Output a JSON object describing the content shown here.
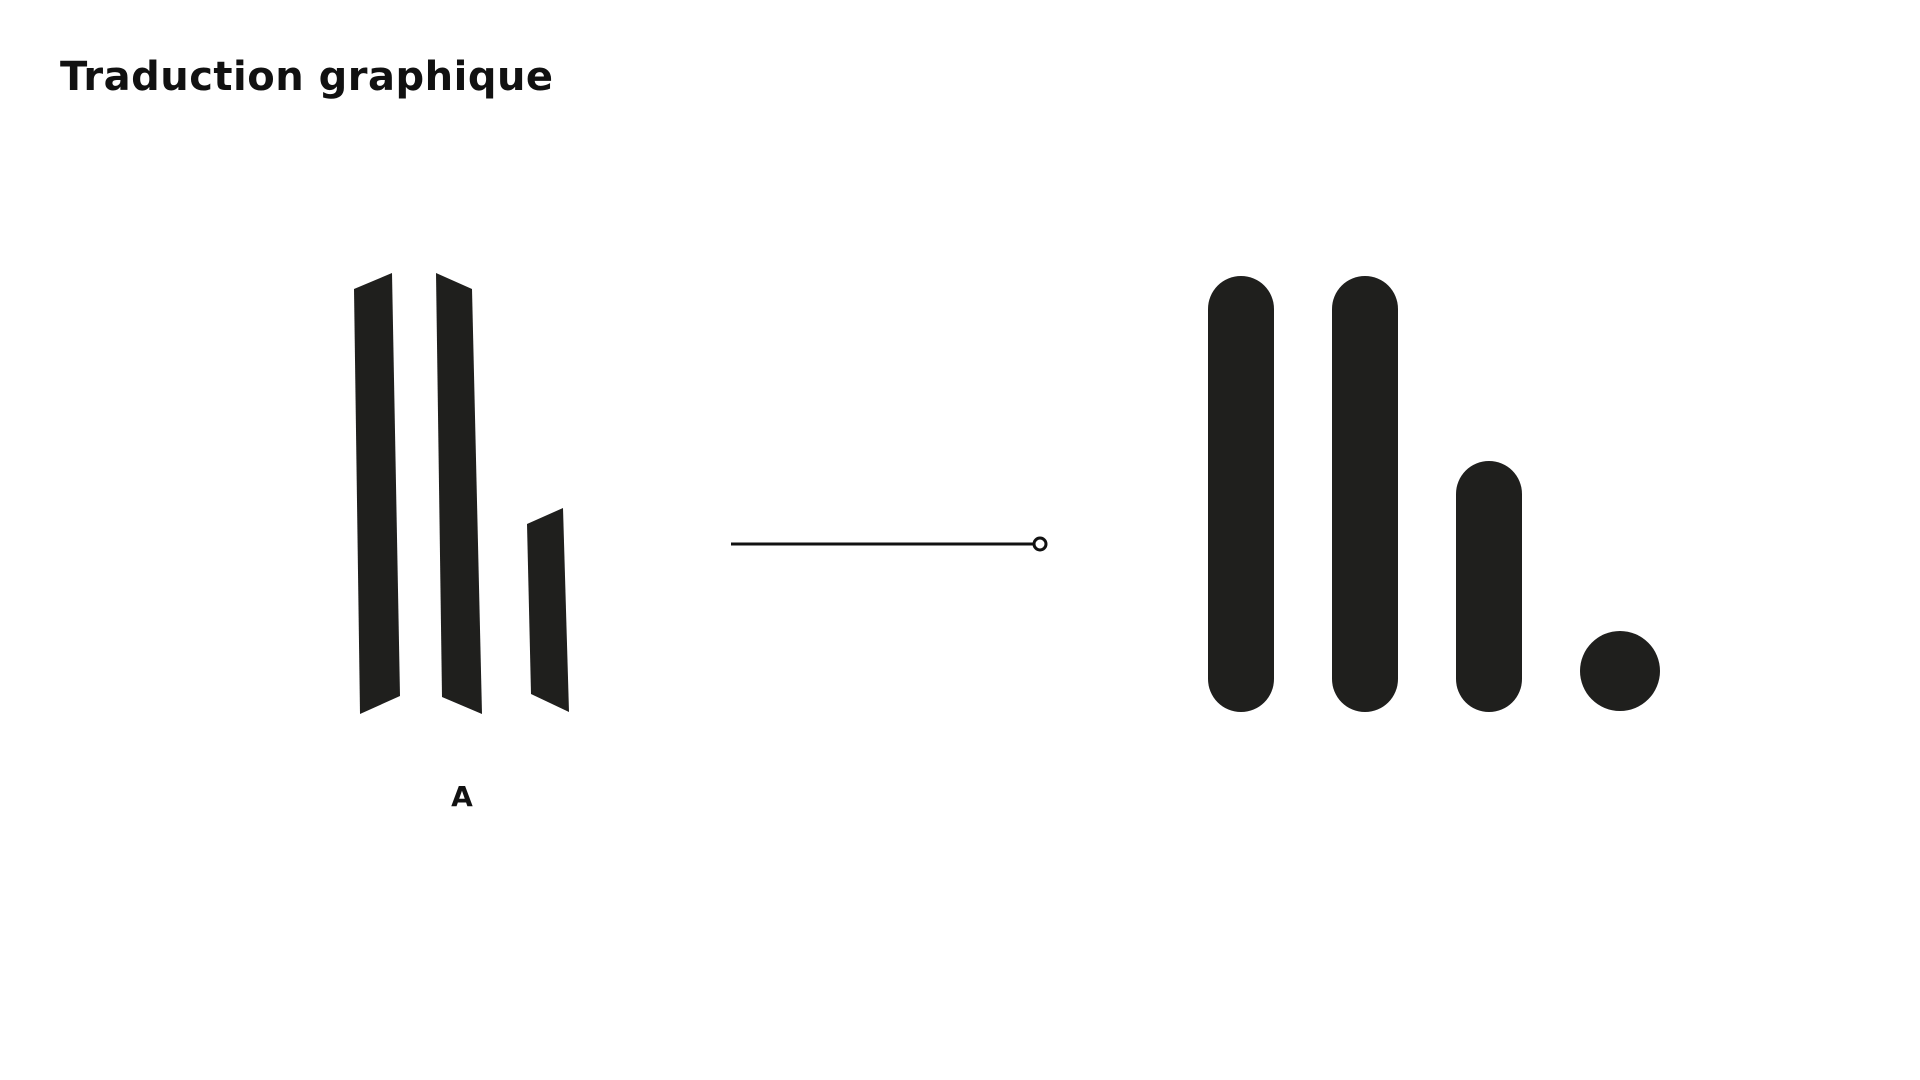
{
  "page": {
    "title": "Traduction graphique"
  },
  "diagram": {
    "source_label": "A",
    "colors": {
      "shape_fill": "#1f1f1d",
      "connector": "#111111",
      "background": "#ffffff"
    }
  }
}
